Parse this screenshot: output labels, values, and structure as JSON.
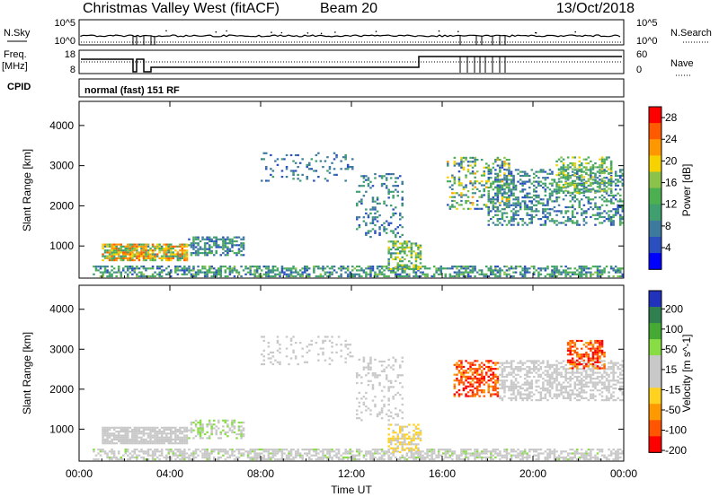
{
  "header": {
    "title": "Christmas Valley West (fitACF)",
    "beam": "Beam 20",
    "date": "13/Oct/2018"
  },
  "params": {
    "nsky_label": "N.Sky",
    "nsky_ticks": [
      "10^5",
      "10^0"
    ],
    "nsearch_label": "N.Search",
    "nsearch_ticks": [
      "10^5",
      "10^0"
    ],
    "freq_label": "Freq.",
    "freq_unit": "[MHz]",
    "freq_ticks": [
      "18",
      "8"
    ],
    "nave_label": "Nave",
    "nave_ticks": [
      "60",
      "0"
    ],
    "cpid_label": "CPID",
    "cpid_text": "normal (fast) 151 RF"
  },
  "colors": {
    "power": [
      "#0000ff",
      "#2a4fbf",
      "#3e7a9e",
      "#3f9f6f",
      "#4caf50",
      "#8bc34a",
      "#f6d200",
      "#ff9800",
      "#ff5a00",
      "#ff0000"
    ],
    "velocity": [
      "#2233bb",
      "#2f7f4f",
      "#44aa33",
      "#88dd44",
      "#c8c8c8",
      "#c8c8c8",
      "#ffd21f",
      "#ff9900",
      "#ff5500",
      "#ff0000"
    ]
  },
  "chart_data": [
    {
      "type": "heatmap",
      "panel": "power",
      "xlabel": "",
      "ylabel": "Slant Range [km]",
      "x_ticks": [
        "00:00",
        "04:00",
        "08:00",
        "12:00",
        "16:00",
        "20:00",
        "00:00"
      ],
      "y_ticks": [
        "1000",
        "2000",
        "3000",
        "4000"
      ],
      "ylim": [
        200,
        4600
      ],
      "xlim_hours": [
        0,
        24
      ],
      "colorbar_label": "Power [dB]",
      "colorbar_ticks": [
        "4",
        "8",
        "12",
        "16",
        "20",
        "24",
        "28"
      ],
      "colorbar_range": [
        0,
        30
      ],
      "regions": [
        {
          "t0": 0.6,
          "t1": 24,
          "r0": 220,
          "r1": 480,
          "v0": 4,
          "v1": 16,
          "density": 0.55
        },
        {
          "t0": 1.0,
          "t1": 4.8,
          "r0": 620,
          "r1": 1050,
          "v0": 8,
          "v1": 26,
          "density": 0.85
        },
        {
          "t0": 4.8,
          "t1": 7.2,
          "r0": 750,
          "r1": 1200,
          "v0": 4,
          "v1": 14,
          "density": 0.55
        },
        {
          "t0": 13.6,
          "t1": 15.0,
          "r0": 400,
          "r1": 1100,
          "v0": 8,
          "v1": 20,
          "density": 0.55
        },
        {
          "t0": 12.2,
          "t1": 14.2,
          "r0": 1200,
          "r1": 2800,
          "v0": 4,
          "v1": 12,
          "density": 0.2
        },
        {
          "t0": 8.0,
          "t1": 12.0,
          "r0": 2600,
          "r1": 3300,
          "v0": 4,
          "v1": 10,
          "density": 0.12
        },
        {
          "t0": 16.2,
          "t1": 19.0,
          "r0": 1900,
          "r1": 3200,
          "v0": 4,
          "v1": 22,
          "density": 0.3
        },
        {
          "t0": 18.0,
          "t1": 24.0,
          "r0": 1500,
          "r1": 2900,
          "v0": 4,
          "v1": 14,
          "density": 0.4
        },
        {
          "t0": 21.0,
          "t1": 23.5,
          "r0": 2300,
          "r1": 3200,
          "v0": 8,
          "v1": 20,
          "density": 0.45
        }
      ]
    },
    {
      "type": "heatmap",
      "panel": "velocity",
      "xlabel": "Time UT",
      "ylabel": "Slant Range [km]",
      "x_ticks": [
        "00:00",
        "04:00",
        "08:00",
        "12:00",
        "16:00",
        "20:00",
        "00:00"
      ],
      "y_ticks": [
        "1000",
        "2000",
        "3000",
        "4000"
      ],
      "ylim": [
        200,
        4600
      ],
      "xlim_hours": [
        0,
        24
      ],
      "colorbar_label": "Velocity [m s^-1]",
      "colorbar_ticks": [
        "200",
        "100",
        "50",
        "15",
        "-15",
        "-50",
        "-100",
        "-200"
      ],
      "colorbar_range": [
        -250,
        250
      ],
      "regions": [
        {
          "t0": 0.6,
          "t1": 24,
          "r0": 220,
          "r1": 480,
          "v0": -40,
          "v1": 60,
          "density": 0.6
        },
        {
          "t0": 1.0,
          "t1": 4.8,
          "r0": 620,
          "r1": 1050,
          "v0": -10,
          "v1": 10,
          "density": 0.85
        },
        {
          "t0": 4.8,
          "t1": 7.2,
          "r0": 750,
          "r1": 1200,
          "v0": 20,
          "v1": 80,
          "density": 0.45
        },
        {
          "t0": 13.6,
          "t1": 15.0,
          "r0": 400,
          "r1": 1100,
          "v0": -80,
          "v1": -30,
          "density": 0.55
        },
        {
          "t0": 12.2,
          "t1": 14.2,
          "r0": 1200,
          "r1": 2800,
          "v0": -10,
          "v1": 10,
          "density": 0.2
        },
        {
          "t0": 8.0,
          "t1": 12.0,
          "r0": 2600,
          "r1": 3300,
          "v0": -10,
          "v1": 10,
          "density": 0.12
        },
        {
          "t0": 16.5,
          "t1": 18.5,
          "r0": 1800,
          "r1": 2700,
          "v0": -240,
          "v1": -120,
          "density": 0.55
        },
        {
          "t0": 18.5,
          "t1": 24.0,
          "r0": 1700,
          "r1": 2700,
          "v0": -12,
          "v1": 12,
          "density": 0.5
        },
        {
          "t0": 21.5,
          "t1": 23.2,
          "r0": 2500,
          "r1": 3200,
          "v0": -240,
          "v1": -120,
          "density": 0.55
        }
      ]
    }
  ]
}
